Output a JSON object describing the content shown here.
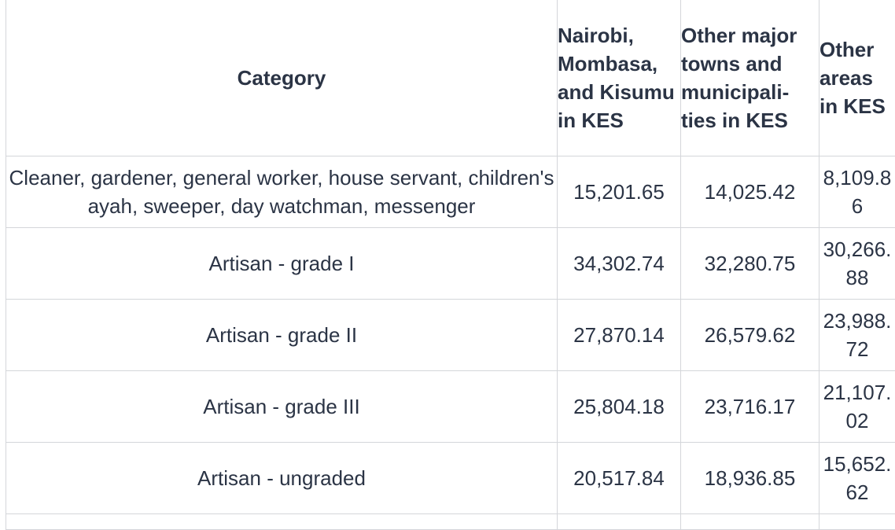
{
  "table": {
    "headers": {
      "category": "Category",
      "nairobi": "Nairobi, Mombasa, and Kisumu in KES",
      "towns": "Other major towns and municipali- ties in KES",
      "other": "Other areas in KES"
    },
    "rows": [
      {
        "category": "Cleaner, gardener, general worker, house servant, children's ayah, sweeper, day watchman, messenger",
        "nairobi": "15,201.65",
        "towns": "14,025.42",
        "other": "8,109.86"
      },
      {
        "category": "Artisan - grade I",
        "nairobi": "34,302.74",
        "towns": "32,280.75",
        "other": "30,266.88"
      },
      {
        "category": "Artisan - grade II",
        "nairobi": "27,870.14",
        "towns": "26,579.62",
        "other": "23,988.72"
      },
      {
        "category": "Artisan - grade III",
        "nairobi": "25,804.18",
        "towns": "23,716.17",
        "other": "21,107.02"
      },
      {
        "category": "Artisan - ungraded",
        "nairobi": "20,517.84",
        "towns": "18,936.85",
        "other": "15,652.62"
      }
    ]
  }
}
